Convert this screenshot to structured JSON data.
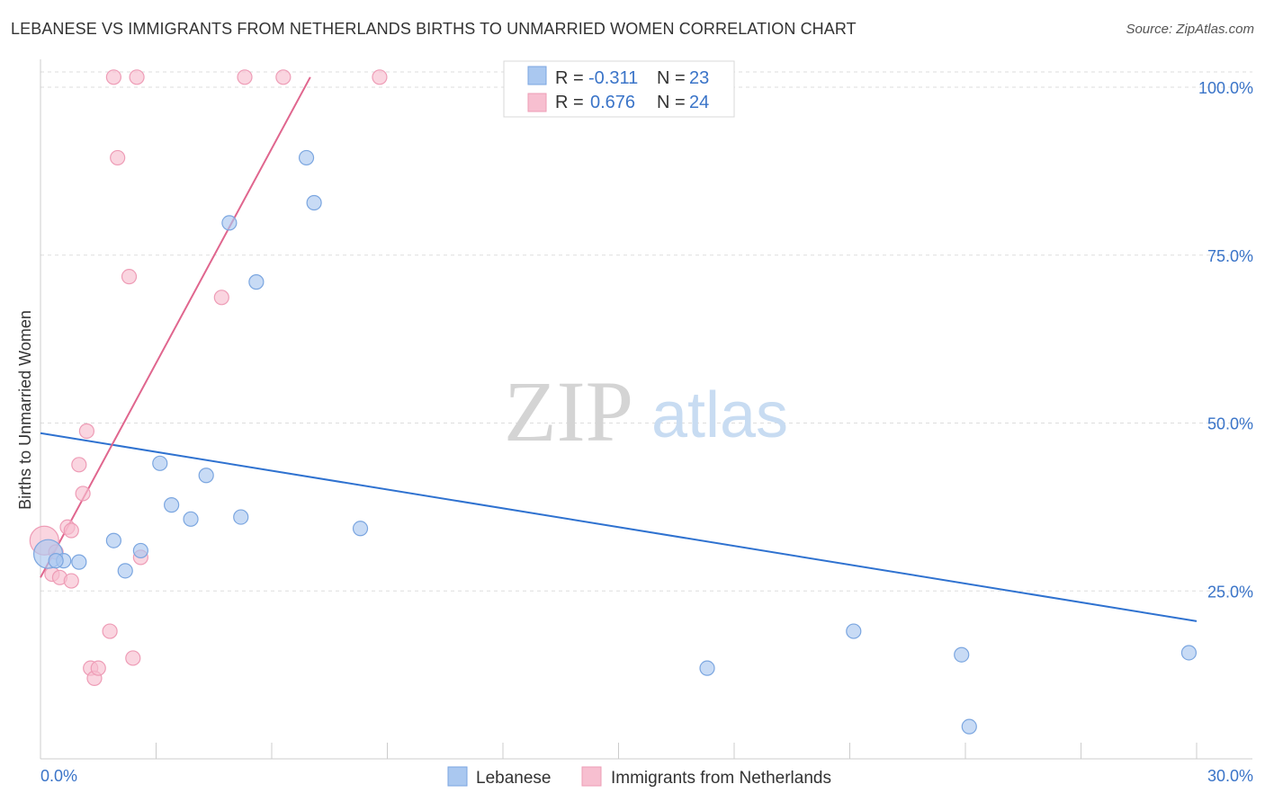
{
  "title": "LEBANESE VS IMMIGRANTS FROM NETHERLANDS BIRTHS TO UNMARRIED WOMEN CORRELATION CHART",
  "source": "Source: ZipAtlas.com",
  "watermark": {
    "zip": "ZIP",
    "atlas": "atlas"
  },
  "colors": {
    "blue_fill": "#aac8f0",
    "blue_stroke": "#7ba6e0",
    "blue_line": "#2f72d0",
    "pink_fill": "#f7bfd0",
    "pink_stroke": "#ee9cb6",
    "pink_line": "#e0668e",
    "tick_label": "#3a74c8",
    "grid": "#dddddd"
  },
  "legend": {
    "rows": [
      {
        "r_label": "R =",
        "r_value": "-0.311",
        "n_label": "N =",
        "n_value": "23"
      },
      {
        "r_label": "R =",
        "r_value": "0.676",
        "n_label": "N =",
        "n_value": "24"
      }
    ]
  },
  "chart_data": {
    "type": "scatter",
    "title": "LEBANESE VS IMMIGRANTS FROM NETHERLANDS BIRTHS TO UNMARRIED WOMEN CORRELATION CHART",
    "xlabel": "",
    "ylabel": "Births to Unmarried Women",
    "xlim": [
      0,
      30
    ],
    "ylim": [
      0,
      100
    ],
    "x_tick_labels": [
      "0.0%",
      "30.0%"
    ],
    "y_ticks": [
      25,
      50,
      75,
      100
    ],
    "y_tick_labels": [
      "25.0%",
      "50.0%",
      "75.0%",
      "100.0%"
    ],
    "grid": true,
    "legend_position": "top-center",
    "series": [
      {
        "name": "Lebanese",
        "color": "#aac8f0",
        "points": [
          {
            "x": 0.2,
            "y": 30.5,
            "big": true
          },
          {
            "x": 0.6,
            "y": 29.5
          },
          {
            "x": 1.0,
            "y": 29.3
          },
          {
            "x": 1.9,
            "y": 32.5
          },
          {
            "x": 2.2,
            "y": 28.0
          },
          {
            "x": 2.6,
            "y": 31.0
          },
          {
            "x": 3.1,
            "y": 44.0
          },
          {
            "x": 3.4,
            "y": 37.8
          },
          {
            "x": 3.9,
            "y": 35.7
          },
          {
            "x": 4.3,
            "y": 42.2
          },
          {
            "x": 4.9,
            "y": 79.8
          },
          {
            "x": 5.2,
            "y": 36.0
          },
          {
            "x": 5.6,
            "y": 71.0
          },
          {
            "x": 6.9,
            "y": 89.5
          },
          {
            "x": 7.1,
            "y": 82.8
          },
          {
            "x": 8.3,
            "y": 34.3
          },
          {
            "x": 12.7,
            "y": 100.2
          },
          {
            "x": 17.3,
            "y": 13.5
          },
          {
            "x": 21.1,
            "y": 19.0
          },
          {
            "x": 23.9,
            "y": 15.5
          },
          {
            "x": 24.1,
            "y": 4.8
          },
          {
            "x": 29.8,
            "y": 15.8
          },
          {
            "x": 0.4,
            "y": 29.5
          }
        ],
        "trend": {
          "x": [
            0,
            30
          ],
          "y": [
            48.5,
            20.5
          ]
        }
      },
      {
        "name": "Immigrants from Netherlands",
        "color": "#f7bfd0",
        "points": [
          {
            "x": 0.1,
            "y": 32.5,
            "big": true
          },
          {
            "x": 0.3,
            "y": 27.5
          },
          {
            "x": 0.4,
            "y": 30.8
          },
          {
            "x": 0.5,
            "y": 27.0
          },
          {
            "x": 0.7,
            "y": 34.5
          },
          {
            "x": 0.8,
            "y": 34.0
          },
          {
            "x": 0.8,
            "y": 26.5
          },
          {
            "x": 1.0,
            "y": 43.8
          },
          {
            "x": 1.1,
            "y": 39.5
          },
          {
            "x": 1.2,
            "y": 48.8
          },
          {
            "x": 1.3,
            "y": 13.5
          },
          {
            "x": 1.4,
            "y": 12.0
          },
          {
            "x": 1.5,
            "y": 13.5
          },
          {
            "x": 1.8,
            "y": 19.0
          },
          {
            "x": 1.9,
            "y": 101.5
          },
          {
            "x": 2.0,
            "y": 89.5
          },
          {
            "x": 2.3,
            "y": 71.8
          },
          {
            "x": 2.4,
            "y": 15.0
          },
          {
            "x": 2.5,
            "y": 101.5
          },
          {
            "x": 2.6,
            "y": 30.0
          },
          {
            "x": 4.7,
            "y": 68.7
          },
          {
            "x": 5.3,
            "y": 101.5
          },
          {
            "x": 6.3,
            "y": 101.5
          },
          {
            "x": 8.8,
            "y": 101.5
          }
        ],
        "trend": {
          "x": [
            0,
            7.0
          ],
          "y": [
            27.0,
            101.5
          ]
        }
      }
    ]
  }
}
